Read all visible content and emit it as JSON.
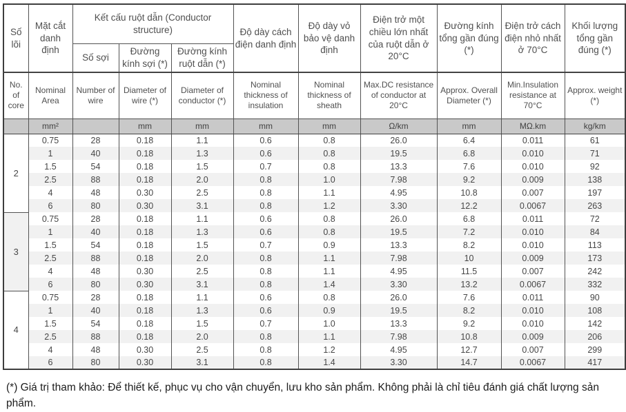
{
  "table": {
    "header": {
      "core": {
        "vi": "Số lõi",
        "en": "No. of core",
        "unit": ""
      },
      "area": {
        "vi": "Mặt cắt danh định",
        "en": "Nominal Area",
        "unit": "mm²"
      },
      "conductor_group_title": "Kết cấu ruột dẫn (Conductor structure)",
      "wires": {
        "vi": "Số sợi",
        "en": "Number of wire",
        "unit": ""
      },
      "wire_dia": {
        "vi": "Đường kính sợi (*)",
        "en": "Diameter of wire (*)",
        "unit": "mm"
      },
      "cond_dia": {
        "vi": "Đường kính ruột dẫn (*)",
        "en": "Diameter of conductor (*)",
        "unit": "mm"
      },
      "insulation": {
        "vi": "Độ dày cách điện danh định",
        "en": "Nominal thickness of insulation",
        "unit": "mm"
      },
      "sheath": {
        "vi": "Độ dày vỏ bảo vệ danh định",
        "en": "Nominal thickness of sheath",
        "unit": "mm"
      },
      "dc_resistance": {
        "vi": "Điện trở một chiều lớn nhất của ruột dẫn ở 20°C",
        "en": "Max.DC resistance of conductor at 20°C",
        "unit": "Ω/km"
      },
      "overall_dia": {
        "vi": "Đường kính tổng gần đúng (*)",
        "en": "Approx. Overall Diameter (*)",
        "unit": "mm"
      },
      "ins_resistance": {
        "vi": "Điện trở cách điện nhỏ nhất ở 70°C",
        "en": "Min.Insulation resistance at 70°C",
        "unit": "MΩ.km"
      },
      "weight": {
        "vi": "Khối lượng tổng gần đúng (*)",
        "en": "Approx. weight (*)",
        "unit": "kg/km"
      }
    },
    "groups": [
      {
        "core": "2",
        "rows": [
          [
            "0.75",
            "28",
            "0.18",
            "1.1",
            "0.6",
            "0.8",
            "26.0",
            "6.4",
            "0.011",
            "61"
          ],
          [
            "1",
            "40",
            "0.18",
            "1.3",
            "0.6",
            "0.8",
            "19.5",
            "6.8",
            "0.010",
            "71"
          ],
          [
            "1.5",
            "54",
            "0.18",
            "1.5",
            "0.7",
            "0.8",
            "13.3",
            "7.6",
            "0.010",
            "92"
          ],
          [
            "2.5",
            "88",
            "0.18",
            "2.0",
            "0.8",
            "1.0",
            "7.98",
            "9.2",
            "0.009",
            "138"
          ],
          [
            "4",
            "48",
            "0.30",
            "2.5",
            "0.8",
            "1.1",
            "4.95",
            "10.8",
            "0.007",
            "197"
          ],
          [
            "6",
            "80",
            "0.30",
            "3.1",
            "0.8",
            "1.2",
            "3.30",
            "12.2",
            "0.0067",
            "263"
          ]
        ]
      },
      {
        "core": "3",
        "rows": [
          [
            "0.75",
            "28",
            "0.18",
            "1.1",
            "0.6",
            "0.8",
            "26.0",
            "6.8",
            "0.011",
            "72"
          ],
          [
            "1",
            "40",
            "0.18",
            "1.3",
            "0.6",
            "0.8",
            "19.5",
            "7.2",
            "0.010",
            "84"
          ],
          [
            "1.5",
            "54",
            "0.18",
            "1.5",
            "0.7",
            "0.9",
            "13.3",
            "8.2",
            "0.010",
            "113"
          ],
          [
            "2.5",
            "88",
            "0.18",
            "2.0",
            "0.8",
            "1.1",
            "7.98",
            "10",
            "0.009",
            "173"
          ],
          [
            "4",
            "48",
            "0.30",
            "2.5",
            "0.8",
            "1.1",
            "4.95",
            "11.5",
            "0.007",
            "242"
          ],
          [
            "6",
            "80",
            "0.30",
            "3.1",
            "0.8",
            "1.4",
            "3.30",
            "13.2",
            "0.0067",
            "332"
          ]
        ]
      },
      {
        "core": "4",
        "rows": [
          [
            "0.75",
            "28",
            "0.18",
            "1.1",
            "0.6",
            "0.8",
            "26.0",
            "7.6",
            "0.011",
            "90"
          ],
          [
            "1",
            "40",
            "0.18",
            "1.3",
            "0.6",
            "0.9",
            "19.5",
            "8.2",
            "0.010",
            "108"
          ],
          [
            "1.5",
            "54",
            "0.18",
            "1.5",
            "0.7",
            "1.0",
            "13.3",
            "9.2",
            "0.010",
            "142"
          ],
          [
            "2.5",
            "88",
            "0.18",
            "2.0",
            "0.8",
            "1.1",
            "7.98",
            "10.8",
            "0.009",
            "206"
          ],
          [
            "4",
            "48",
            "0.30",
            "2.5",
            "0.8",
            "1.2",
            "4.95",
            "12.7",
            "0.007",
            "299"
          ],
          [
            "6",
            "80",
            "0.30",
            "3.1",
            "0.8",
            "1.4",
            "3.30",
            "14.7",
            "0.0067",
            "417"
          ]
        ]
      }
    ],
    "footnote": "(*) Giá trị tham khảo: Để thiết kế, phục vụ cho vận chuyển, lưu kho sản phẩm. Không phải là chỉ tiêu đánh giá chất lượng sản phẩm.",
    "colors": {
      "units_row_bg": "#c9c9c9",
      "stripe_bg": "#f1f1f1",
      "border": "#4a4a4a",
      "text": "#4a4a4a"
    }
  }
}
